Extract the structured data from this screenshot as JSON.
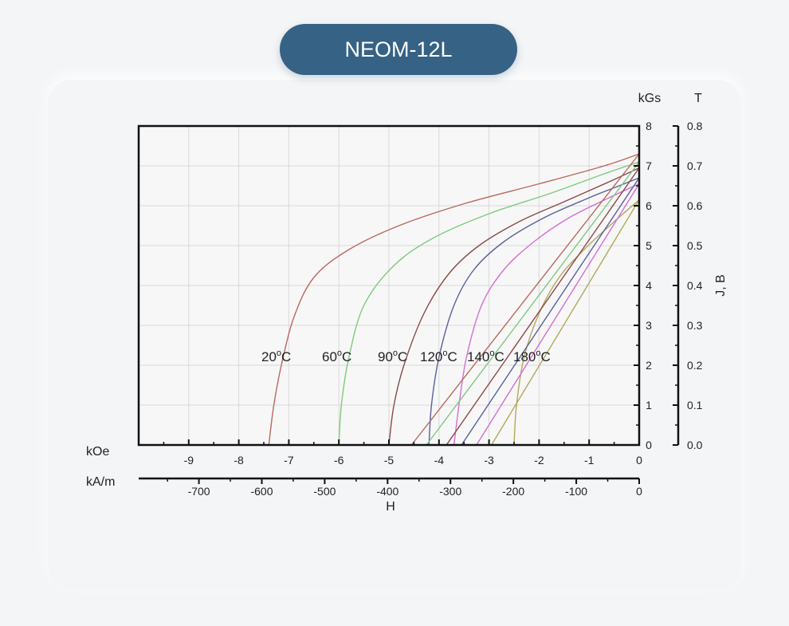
{
  "title": "NEOM-12L",
  "chart_data": {
    "type": "line",
    "x_axis_koe": {
      "unit_label": "kOe",
      "min": -10,
      "max": 0,
      "ticks": [
        -9,
        -8,
        -7,
        -6,
        -5,
        -4,
        -3,
        -2,
        -1,
        0
      ]
    },
    "x_axis_kam": {
      "unit_label": "kA/m",
      "ticks": [
        -700,
        -600,
        -500,
        -400,
        -300,
        -200,
        -100,
        0
      ]
    },
    "xlabel": "H",
    "y_axis_kgs": {
      "unit_label": "kGs",
      "min": 0,
      "max": 8,
      "ticks": [
        0,
        1,
        2,
        3,
        4,
        5,
        6,
        7,
        8
      ]
    },
    "y_axis_t": {
      "unit_label": "T",
      "ticks": [
        "0.0",
        "0.1",
        "0.2",
        "0.3",
        "0.4",
        "0.5",
        "0.6",
        "0.7",
        "0.8"
      ],
      "title": "J, B"
    },
    "grid": true,
    "series": [
      {
        "name": "20°C",
        "label_text": "20",
        "color": "#b86a5e",
        "kind": "J",
        "points": [
          [
            -7.4,
            0
          ],
          [
            -7.3,
            1
          ],
          [
            -7.15,
            2
          ],
          [
            -6.9,
            3.2
          ],
          [
            -6.5,
            4.2
          ],
          [
            -5.8,
            4.9
          ],
          [
            -4.8,
            5.5
          ],
          [
            -3.5,
            6.05
          ],
          [
            -2,
            6.55
          ],
          [
            -0.7,
            7.0
          ],
          [
            0,
            7.3
          ]
        ]
      },
      {
        "name": "60°C",
        "label_text": "60",
        "color": "#7fc97f",
        "kind": "J",
        "points": [
          [
            -6.0,
            0
          ],
          [
            -5.95,
            1
          ],
          [
            -5.8,
            2.2
          ],
          [
            -5.5,
            3.5
          ],
          [
            -4.9,
            4.5
          ],
          [
            -4.1,
            5.2
          ],
          [
            -3.0,
            5.8
          ],
          [
            -1.8,
            6.3
          ],
          [
            -0.7,
            6.8
          ],
          [
            0,
            7.1
          ]
        ]
      },
      {
        "name": "90°C",
        "label_text": "90",
        "color": "#8a4a4a",
        "kind": "J",
        "points": [
          [
            -5.0,
            0
          ],
          [
            -4.9,
            1
          ],
          [
            -4.7,
            2
          ],
          [
            -4.3,
            3.3
          ],
          [
            -3.8,
            4.3
          ],
          [
            -3.2,
            5.0
          ],
          [
            -2.4,
            5.6
          ],
          [
            -1.5,
            6.1
          ],
          [
            -0.6,
            6.6
          ],
          [
            0,
            6.95
          ]
        ]
      },
      {
        "name": "120°C",
        "label_text": "120",
        "color": "#5a5f9c",
        "kind": "J",
        "points": [
          [
            -4.2,
            0
          ],
          [
            -4.15,
            1
          ],
          [
            -4.0,
            2.2
          ],
          [
            -3.7,
            3.5
          ],
          [
            -3.3,
            4.4
          ],
          [
            -2.7,
            5.1
          ],
          [
            -1.9,
            5.7
          ],
          [
            -1.0,
            6.2
          ],
          [
            -0.4,
            6.5
          ],
          [
            0,
            6.7
          ]
        ]
      },
      {
        "name": "140°C",
        "label_text": "140",
        "color": "#d36fd3",
        "kind": "J",
        "points": [
          [
            -3.7,
            0
          ],
          [
            -3.6,
            1
          ],
          [
            -3.45,
            2.2
          ],
          [
            -3.15,
            3.5
          ],
          [
            -2.7,
            4.4
          ],
          [
            -2.1,
            5.1
          ],
          [
            -1.4,
            5.7
          ],
          [
            -0.6,
            6.2
          ],
          [
            0,
            6.55
          ]
        ]
      },
      {
        "name": "180°C",
        "label_text": "180",
        "color": "#b3a85a",
        "kind": "J",
        "points": [
          [
            -2.5,
            0
          ],
          [
            -2.45,
            1
          ],
          [
            -2.3,
            2.2
          ],
          [
            -2.0,
            3.3
          ],
          [
            -1.6,
            4.2
          ],
          [
            -1.1,
            4.9
          ],
          [
            -0.5,
            5.6
          ],
          [
            0,
            6.15
          ]
        ]
      },
      {
        "name": "20°C B",
        "color": "#b86a5e",
        "kind": "B",
        "points": [
          [
            -4.55,
            0
          ],
          [
            0,
            7.3
          ]
        ]
      },
      {
        "name": "60°C B",
        "color": "#7fc97f",
        "kind": "B",
        "points": [
          [
            -4.25,
            0
          ],
          [
            0,
            7.1
          ]
        ]
      },
      {
        "name": "90°C B",
        "color": "#8a4a4a",
        "kind": "B",
        "points": [
          [
            -3.85,
            0
          ],
          [
            0,
            6.95
          ]
        ]
      },
      {
        "name": "120°C B",
        "color": "#5a5f9c",
        "kind": "B",
        "points": [
          [
            -3.55,
            0
          ],
          [
            0,
            6.7
          ]
        ]
      },
      {
        "name": "140°C B",
        "color": "#d36fd3",
        "kind": "B",
        "points": [
          [
            -3.25,
            0
          ],
          [
            0,
            6.55
          ]
        ]
      },
      {
        "name": "180°C B",
        "color": "#b3a85a",
        "kind": "B",
        "points": [
          [
            -2.95,
            0
          ],
          [
            0,
            6.15
          ]
        ]
      }
    ]
  }
}
